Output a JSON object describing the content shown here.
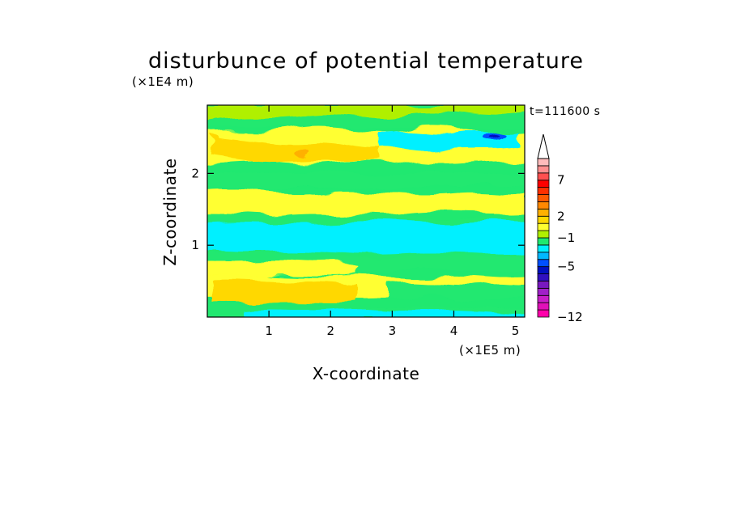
{
  "chart_data": {
    "type": "heatmap",
    "title": "disturbunce of potential temperature",
    "xlabel": "X-coordinate",
    "ylabel": "Z-coordinate",
    "x_unit": "(×1E5 m)",
    "y_unit": "(×1E4 m)",
    "time_label": "t=111600 s",
    "xlim": [
      0,
      5.15
    ],
    "ylim": [
      0,
      2.95
    ],
    "x_ticks": [
      "1",
      "2",
      "3",
      "4",
      "5"
    ],
    "y_ticks": [
      "1",
      "2"
    ],
    "x_tick_values": [
      1,
      2,
      3,
      4,
      5
    ],
    "y_tick_values": [
      1,
      2
    ],
    "colorbar": {
      "levels": [
        -12,
        -11,
        -10,
        -9,
        -8,
        -7,
        -6,
        -5,
        -4,
        -3,
        -2,
        -1,
        0,
        1,
        2,
        3,
        4,
        5,
        6,
        7,
        8,
        9,
        10
      ],
      "labels": [
        "−12",
        "−5",
        "−1",
        "2",
        "7"
      ],
      "label_values": [
        -12,
        -5,
        -1,
        2,
        7
      ],
      "colors": [
        "#ff00aa",
        "#e010b8",
        "#c81ec8",
        "#a020c8",
        "#7818c0",
        "#3010c0",
        "#0010c0",
        "#0050ff",
        "#00b8ff",
        "#00f0ff",
        "#20e870",
        "#b0f000",
        "#ffff30",
        "#ffd800",
        "#ffb000",
        "#ff8800",
        "#ff5a00",
        "#ff3000",
        "#ff0000",
        "#ff5050",
        "#ff9090",
        "#ffbcbc"
      ],
      "extend": "max"
    },
    "field_description_rows": [
      {
        "z": [
          2.55,
          2.95
        ],
        "value": 0
      },
      {
        "z": [
          2.2,
          2.55
        ],
        "value": 2
      },
      {
        "z": [
          1.9,
          2.2
        ],
        "value": 1
      },
      {
        "z": [
          1.4,
          1.9
        ],
        "value": 1.5
      },
      {
        "z": [
          1.25,
          1.4
        ],
        "value": 0.5
      },
      {
        "z": [
          0.85,
          1.25
        ],
        "value": -1
      },
      {
        "z": [
          0.7,
          0.85
        ],
        "value": 0
      },
      {
        "z": [
          0.35,
          0.7
        ],
        "value": 1.5
      },
      {
        "z": [
          0.12,
          0.35
        ],
        "value": 2
      },
      {
        "z": [
          0.0,
          0.12
        ],
        "value": -0.5
      }
    ]
  }
}
